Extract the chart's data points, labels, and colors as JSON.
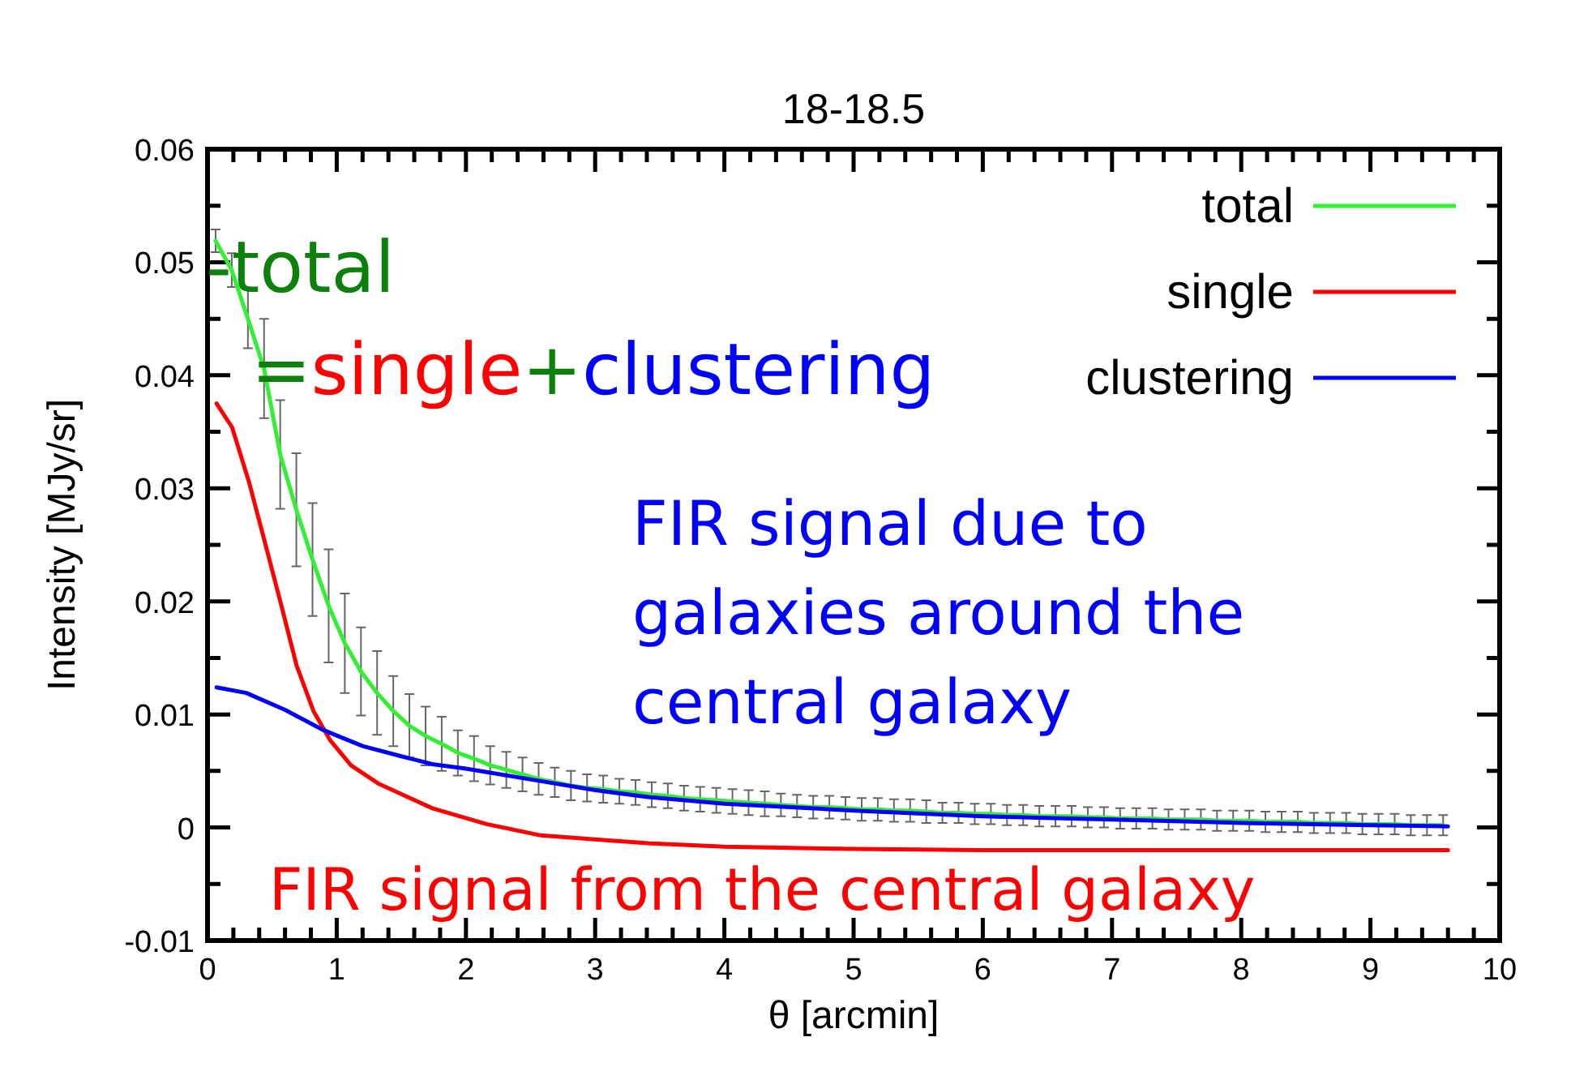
{
  "chart_data": {
    "type": "line",
    "title": "18-18.5",
    "xlabel": "θ [arcmin]",
    "ylabel": "Intensity [MJy/sr]",
    "xlim": [
      0,
      10
    ],
    "xticks": [
      0,
      1,
      2,
      3,
      4,
      5,
      6,
      7,
      8,
      9,
      10
    ],
    "ylim": [
      -0.01,
      0.06
    ],
    "yticks": [
      -0.01,
      0,
      0.01,
      0.02,
      0.03,
      0.04,
      0.05,
      0.06
    ],
    "grid": false,
    "legend": "top right",
    "marker": "none",
    "line_style": "solid",
    "annotations": [
      "-total",
      "=single+clustering",
      "FIR signal due to\ngalaxies around the\ncentral galaxy",
      "FIR signal from the central galaxy"
    ],
    "series": [
      {
        "name": "total",
        "color": "#33ee33",
        "x": [
          0.0625,
          0.1875,
          0.3125,
          0.4375,
          0.5625,
          0.6875,
          0.8125,
          0.9375,
          1.0625,
          1.1875,
          1.3125,
          1.4375,
          1.5625,
          1.6875,
          1.8125,
          1.9375,
          2.0625,
          2.1875,
          2.3125,
          2.4375,
          2.5625,
          2.6875,
          2.8125,
          2.9375,
          3.0625,
          3.1875,
          3.3125,
          3.4375,
          3.5625,
          3.6875,
          3.8125,
          3.9375,
          4.0625,
          4.1875,
          4.3125,
          4.4375,
          4.5625,
          4.6875,
          4.8125,
          4.9375,
          5.0625,
          5.1875,
          5.3125,
          5.4375,
          5.5625,
          5.6875,
          5.8125,
          5.9375,
          6.0625,
          6.1875,
          6.3125,
          6.4375,
          6.5625,
          6.6875,
          6.8125,
          6.9375,
          7.0625,
          7.1875,
          7.3125,
          7.4375,
          7.5625,
          7.6875,
          7.8125,
          7.9375,
          8.0625,
          8.1875,
          8.3125,
          8.4375,
          8.5625,
          8.6875,
          8.8125,
          8.9375,
          9.0625,
          9.1875,
          9.3125,
          9.4375,
          9.5625
        ],
        "values": [
          0.0519,
          0.0493,
          0.045,
          0.0406,
          0.033,
          0.0281,
          0.0237,
          0.0196,
          0.0163,
          0.0138,
          0.0119,
          0.0103,
          0.009,
          0.0081,
          0.0074,
          0.0066,
          0.0061,
          0.0055,
          0.0051,
          0.0047,
          0.0043,
          0.004,
          0.0037,
          0.0035,
          0.0034,
          0.0032,
          0.0031,
          0.0029,
          0.0028,
          0.0026,
          0.0025,
          0.0024,
          0.0023,
          0.0022,
          0.0021,
          0.002,
          0.0019,
          0.0018,
          0.0018,
          0.0017,
          0.0016,
          0.0016,
          0.0015,
          0.0015,
          0.0014,
          0.0013,
          0.0013,
          0.0012,
          0.0012,
          0.0011,
          0.0011,
          0.001,
          0.001,
          0.001,
          0.0009,
          0.0009,
          0.0008,
          0.0008,
          0.0008,
          0.0007,
          0.0007,
          0.0007,
          0.0006,
          0.0006,
          0.0006,
          0.0005,
          0.0005,
          0.0005,
          0.0004,
          0.0004,
          0.0004,
          0.0003,
          0.0003,
          0.0003,
          0.0002,
          0.0002,
          0.0002
        ],
        "errors": [
          0.001,
          0.0015,
          0.0026,
          0.0044,
          0.0048,
          0.005,
          0.005,
          0.005,
          0.0044,
          0.0039,
          0.0037,
          0.0031,
          0.0028,
          0.0026,
          0.0024,
          0.002,
          0.002,
          0.0017,
          0.0016,
          0.0015,
          0.0014,
          0.0013,
          0.0013,
          0.0012,
          0.0012,
          0.0011,
          0.0011,
          0.0011,
          0.0011,
          0.0011,
          0.0011,
          0.0011,
          0.0011,
          0.0011,
          0.0011,
          0.001,
          0.001,
          0.001,
          0.001,
          0.001,
          0.001,
          0.001,
          0.001,
          0.001,
          0.001,
          0.0009,
          0.0009,
          0.0009,
          0.0009,
          0.0009,
          0.0009,
          0.0009,
          0.0009,
          0.0009,
          0.0009,
          0.0009,
          0.0009,
          0.0009,
          0.0009,
          0.0009,
          0.0009,
          0.0009,
          0.0009,
          0.0009,
          0.0009,
          0.0009,
          0.0009,
          0.0009,
          0.0009,
          0.0009,
          0.0009,
          0.0009,
          0.0009,
          0.0009,
          0.0009,
          0.0009,
          0.0009
        ]
      },
      {
        "name": "single",
        "color": "#ff0000",
        "x": [
          0.07,
          0.19,
          0.32,
          0.44,
          0.57,
          0.69,
          0.82,
          0.95,
          1.11,
          1.32,
          1.74,
          2.16,
          2.58,
          3.41,
          4,
          5,
          6,
          7,
          8,
          9,
          9.6
        ],
        "values": [
          0.0375,
          0.0354,
          0.0306,
          0.0254,
          0.0197,
          0.0143,
          0.0103,
          0.0077,
          0.0055,
          0.0039,
          0.0017,
          0.0003,
          -0.0007,
          -0.0014,
          -0.0017,
          -0.0019,
          -0.002,
          -0.002,
          -0.002,
          -0.002,
          -0.002
        ]
      },
      {
        "name": "clustering",
        "color": "#0000ff",
        "x": [
          0.07,
          0.3,
          0.6,
          0.9,
          1.2,
          1.5,
          1.74,
          2,
          2.58,
          3,
          3.41,
          4,
          5,
          6,
          7,
          8,
          9,
          9.6
        ],
        "values": [
          0.0124,
          0.0119,
          0.0104,
          0.0086,
          0.0072,
          0.0063,
          0.0056,
          0.0052,
          0.0041,
          0.0033,
          0.0027,
          0.0021,
          0.0015,
          0.001,
          0.0007,
          0.0004,
          0.0002,
          0.0001
        ]
      }
    ]
  }
}
